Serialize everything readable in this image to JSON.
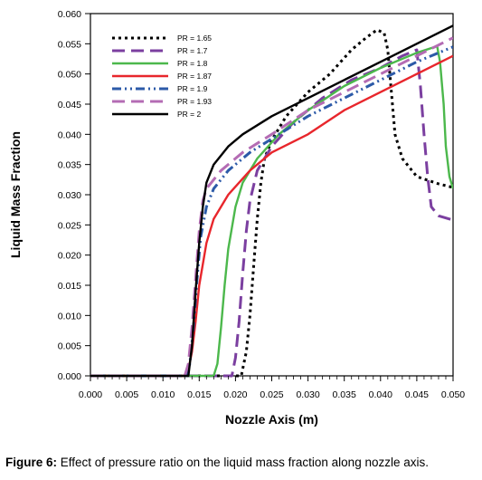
{
  "chart_data": {
    "type": "line",
    "xlabel": "Nozzle Axis (m)",
    "ylabel": "Liquid Mass Fraction",
    "xlim": [
      0.0,
      0.05
    ],
    "ylim": [
      0.0,
      0.06
    ],
    "x_ticks": [
      "0.000",
      "0.005",
      "0.010",
      "0.015",
      "0.020",
      "0.025",
      "0.030",
      "0.035",
      "0.040",
      "0.045",
      "0.050"
    ],
    "y_ticks": [
      "0.000",
      "0.005",
      "0.010",
      "0.015",
      "0.020",
      "0.025",
      "0.030",
      "0.035",
      "0.040",
      "0.045",
      "0.050",
      "0.055",
      "0.060"
    ],
    "legend_position": "top-left",
    "grid": false,
    "series": [
      {
        "name": "PR = 1.65",
        "color": "#000000",
        "dash": "dotted",
        "points": [
          [
            0,
            0
          ],
          [
            0.0208,
            0
          ],
          [
            0.0215,
            0.004
          ],
          [
            0.022,
            0.01
          ],
          [
            0.0225,
            0.018
          ],
          [
            0.023,
            0.026
          ],
          [
            0.0235,
            0.032
          ],
          [
            0.024,
            0.036
          ],
          [
            0.025,
            0.039
          ],
          [
            0.027,
            0.043
          ],
          [
            0.03,
            0.047
          ],
          [
            0.033,
            0.05
          ],
          [
            0.036,
            0.054
          ],
          [
            0.038,
            0.056
          ],
          [
            0.0395,
            0.0573
          ],
          [
            0.0405,
            0.0568
          ],
          [
            0.041,
            0.054
          ],
          [
            0.0415,
            0.047
          ],
          [
            0.042,
            0.04
          ],
          [
            0.043,
            0.036
          ],
          [
            0.045,
            0.033
          ],
          [
            0.048,
            0.0318
          ],
          [
            0.05,
            0.0312
          ]
        ]
      },
      {
        "name": "PR = 1.7",
        "color": "#7B3FA0",
        "dash": "long-dash",
        "points": [
          [
            0,
            0
          ],
          [
            0.0195,
            0
          ],
          [
            0.02,
            0.003
          ],
          [
            0.0205,
            0.009
          ],
          [
            0.021,
            0.017
          ],
          [
            0.0215,
            0.024
          ],
          [
            0.022,
            0.029
          ],
          [
            0.023,
            0.034
          ],
          [
            0.025,
            0.038
          ],
          [
            0.028,
            0.042
          ],
          [
            0.032,
            0.046
          ],
          [
            0.036,
            0.049
          ],
          [
            0.04,
            0.051
          ],
          [
            0.043,
            0.053
          ],
          [
            0.045,
            0.054
          ],
          [
            0.0455,
            0.048
          ],
          [
            0.046,
            0.04
          ],
          [
            0.0465,
            0.033
          ],
          [
            0.047,
            0.028
          ],
          [
            0.048,
            0.0265
          ],
          [
            0.05,
            0.0258
          ]
        ]
      },
      {
        "name": "PR = 1.8",
        "color": "#4CB84C",
        "dash": "solid",
        "points": [
          [
            0,
            0
          ],
          [
            0.017,
            0
          ],
          [
            0.0175,
            0.002
          ],
          [
            0.018,
            0.008
          ],
          [
            0.0185,
            0.015
          ],
          [
            0.019,
            0.021
          ],
          [
            0.02,
            0.028
          ],
          [
            0.021,
            0.032
          ],
          [
            0.023,
            0.036
          ],
          [
            0.026,
            0.04
          ],
          [
            0.03,
            0.044
          ],
          [
            0.035,
            0.048
          ],
          [
            0.04,
            0.051
          ],
          [
            0.045,
            0.0535
          ],
          [
            0.0478,
            0.0546
          ],
          [
            0.0482,
            0.052
          ],
          [
            0.0487,
            0.045
          ],
          [
            0.049,
            0.038
          ],
          [
            0.0495,
            0.033
          ],
          [
            0.05,
            0.031
          ]
        ]
      },
      {
        "name": "PR = 1.87",
        "color": "#E8262C",
        "dash": "solid",
        "points": [
          [
            0,
            0
          ],
          [
            0.013,
            0
          ],
          [
            0.0135,
            0.001
          ],
          [
            0.014,
            0.004
          ],
          [
            0.0145,
            0.009
          ],
          [
            0.015,
            0.015
          ],
          [
            0.016,
            0.022
          ],
          [
            0.017,
            0.026
          ],
          [
            0.019,
            0.03
          ],
          [
            0.022,
            0.034
          ],
          [
            0.025,
            0.037
          ],
          [
            0.03,
            0.04
          ],
          [
            0.035,
            0.044
          ],
          [
            0.04,
            0.047
          ],
          [
            0.045,
            0.05
          ],
          [
            0.05,
            0.053
          ]
        ]
      },
      {
        "name": "PR = 1.9",
        "color": "#2C5AA8",
        "dash": "dash-dot",
        "points": [
          [
            0,
            0
          ],
          [
            0.0132,
            0
          ],
          [
            0.0137,
            0.002
          ],
          [
            0.0142,
            0.008
          ],
          [
            0.0147,
            0.016
          ],
          [
            0.0152,
            0.023
          ],
          [
            0.016,
            0.028
          ],
          [
            0.017,
            0.031
          ],
          [
            0.019,
            0.034
          ],
          [
            0.022,
            0.037
          ],
          [
            0.026,
            0.04
          ],
          [
            0.03,
            0.043
          ],
          [
            0.035,
            0.046
          ],
          [
            0.04,
            0.049
          ],
          [
            0.045,
            0.052
          ],
          [
            0.05,
            0.0545
          ]
        ]
      },
      {
        "name": "PR = 1.93",
        "color": "#B46CB4",
        "dash": "long-dash",
        "points": [
          [
            0,
            0
          ],
          [
            0.013,
            0
          ],
          [
            0.0135,
            0.002
          ],
          [
            0.014,
            0.008
          ],
          [
            0.0145,
            0.016
          ],
          [
            0.015,
            0.024
          ],
          [
            0.0155,
            0.029
          ],
          [
            0.016,
            0.031
          ],
          [
            0.018,
            0.034
          ],
          [
            0.021,
            0.037
          ],
          [
            0.025,
            0.04
          ],
          [
            0.03,
            0.044
          ],
          [
            0.035,
            0.047
          ],
          [
            0.04,
            0.05
          ],
          [
            0.045,
            0.053
          ],
          [
            0.05,
            0.056
          ]
        ]
      },
      {
        "name": "PR = 2",
        "color": "#000000",
        "dash": "solid",
        "points": [
          [
            0,
            0
          ],
          [
            0.0135,
            0
          ],
          [
            0.014,
            0.005
          ],
          [
            0.0145,
            0.014
          ],
          [
            0.015,
            0.022
          ],
          [
            0.0155,
            0.028
          ],
          [
            0.016,
            0.032
          ],
          [
            0.017,
            0.035
          ],
          [
            0.019,
            0.038
          ],
          [
            0.021,
            0.04
          ],
          [
            0.025,
            0.043
          ],
          [
            0.03,
            0.046
          ],
          [
            0.035,
            0.049
          ],
          [
            0.04,
            0.052
          ],
          [
            0.045,
            0.055
          ],
          [
            0.05,
            0.058
          ]
        ]
      }
    ]
  },
  "caption": {
    "label": "Figure 6:",
    "text": " Effect of pressure ratio on the liquid mass fraction along nozzle axis."
  }
}
